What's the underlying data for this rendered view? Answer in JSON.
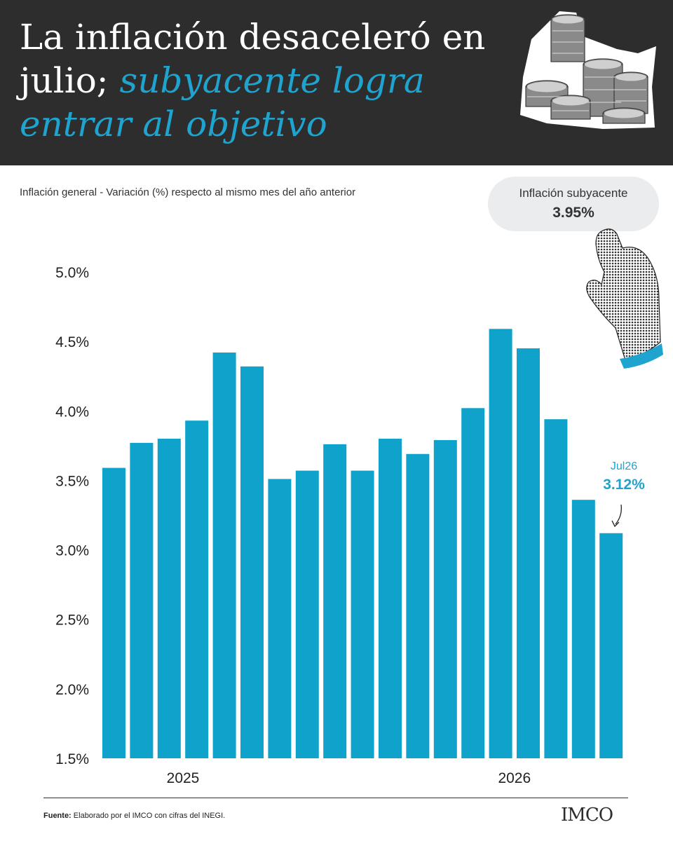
{
  "header": {
    "title_part1": "La inflación desaceleró en julio; ",
    "title_part2": "subyacente logra entrar al objetivo"
  },
  "subtitle": "Inflación general - Variación (%) respecto al mismo mes del año anterior",
  "callout": {
    "label": "Inflación subyacente",
    "value": "3.95%"
  },
  "annotation": {
    "label": "Jul26",
    "value": "3.12%"
  },
  "footer": {
    "source_label": "Fuente:",
    "source_text": " Elaborado por el IMCO con cifras del INEGI.",
    "logo": "IMCO"
  },
  "colors": {
    "bar": "#0fa3cb",
    "accent": "#1fa3cf",
    "header_bg": "#2d2d2d"
  },
  "chart_data": {
    "type": "bar",
    "values": [
      3.59,
      3.77,
      3.8,
      3.93,
      4.42,
      4.32,
      3.51,
      3.57,
      3.76,
      3.57,
      3.8,
      3.69,
      3.79,
      4.02,
      4.59,
      4.45,
      3.94,
      3.36,
      3.12
    ],
    "year_labels": [
      {
        "label": "2025",
        "index": 2.5
      },
      {
        "label": "2026",
        "index": 14.5
      }
    ],
    "yticks": [
      "5.0%",
      "4.5%",
      "4.0%",
      "3.5%",
      "3.0%",
      "2.5%",
      "2.0%",
      "1.5%"
    ],
    "ylim": [
      1.5,
      5.0
    ],
    "grid": false
  }
}
